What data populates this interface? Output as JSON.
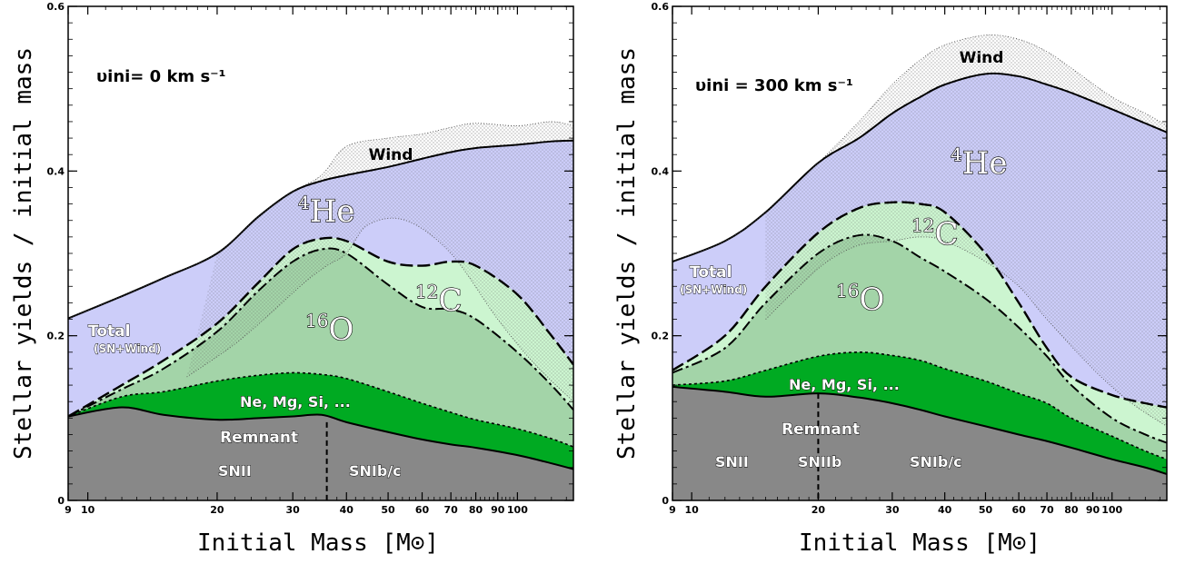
{
  "colors": {
    "remnant": "#888888",
    "nemgsi": "#00aa22",
    "oxygen": "#a3d4a8",
    "carbon": "#ccf5d0",
    "helium": "#cccdf9",
    "wind_stipple": "#666666",
    "line": "#000000"
  },
  "chart_data": [
    {
      "type": "area",
      "stacked": true,
      "xscale": "log",
      "xlim": [
        9,
        135
      ],
      "ylim": [
        0,
        0.6
      ],
      "xlabel": "Initial Mass [M⊙]",
      "ylabel": "Stellar yields / initial mass",
      "xtick_labels": [
        "9",
        "10",
        "20",
        "30",
        "40",
        "50",
        "60",
        "70",
        "80",
        "90",
        "100"
      ],
      "xticks": [
        9,
        10,
        20,
        30,
        40,
        50,
        60,
        70,
        80,
        90,
        100
      ],
      "yticks": [
        0,
        0.2,
        0.4,
        0.6
      ],
      "ytick_labels": [
        "0",
        "0.2",
        "0.4",
        "0.6"
      ],
      "annotation": "υini= 0 km s⁻¹",
      "boundaries": {
        "x": [
          9,
          12,
          15,
          20,
          25,
          30,
          35,
          40,
          50,
          60,
          70,
          80,
          100,
          120,
          135
        ],
        "remnant": [
          0.102,
          0.113,
          0.104,
          0.098,
          0.1,
          0.102,
          0.104,
          0.095,
          0.083,
          0.074,
          0.068,
          0.064,
          0.055,
          0.045,
          0.038
        ],
        "nemgsi": [
          0.102,
          0.126,
          0.132,
          0.145,
          0.152,
          0.155,
          0.153,
          0.148,
          0.132,
          0.118,
          0.107,
          0.098,
          0.087,
          0.075,
          0.065
        ],
        "oxygen": [
          0.102,
          0.135,
          0.16,
          0.205,
          0.255,
          0.29,
          0.305,
          0.3,
          0.262,
          0.235,
          0.232,
          0.22,
          0.18,
          0.14,
          0.11
        ],
        "carbon": [
          0.102,
          0.14,
          0.17,
          0.215,
          0.265,
          0.305,
          0.318,
          0.315,
          0.29,
          0.285,
          0.29,
          0.285,
          0.25,
          0.2,
          0.165
        ],
        "total": [
          0.221,
          0.248,
          0.27,
          0.3,
          0.345,
          0.375,
          0.388,
          0.395,
          0.405,
          0.415,
          0.423,
          0.428,
          0.432,
          0.436,
          0.437
        ],
        "wind_top": [
          0.221,
          0.248,
          0.27,
          0.3,
          0.345,
          0.375,
          0.395,
          0.43,
          0.44,
          0.445,
          0.453,
          0.458,
          0.455,
          0.46,
          0.455
        ]
      },
      "dotted": {
        "x": [
          17,
          22,
          27,
          32,
          36,
          40,
          45,
          55,
          70,
          90,
          110,
          135
        ],
        "y": [
          0.15,
          0.19,
          0.23,
          0.265,
          0.285,
          0.3,
          0.335,
          0.34,
          0.3,
          0.22,
          0.165,
          0.12
        ]
      },
      "split_mass": 36,
      "split_top": 0.095,
      "labels": {
        "wind": "Wind",
        "he4_sup": "4",
        "he4": "He",
        "c12_sup": "12",
        "c12": "C",
        "o16_sup": "16",
        "o16": "O",
        "total": "Total",
        "total_sub": "(SN+Wind)",
        "nemgsi": "Ne, Mg, Si, ...",
        "remnant": "Remnant",
        "snii": "SNII",
        "snibc": "SNIb/c"
      }
    },
    {
      "type": "area",
      "stacked": true,
      "xscale": "log",
      "xlim": [
        9,
        135
      ],
      "ylim": [
        0,
        0.6
      ],
      "xlabel": "Initial Mass [M⊙]",
      "ylabel": "Stellar yields / initial mass",
      "xtick_labels": [
        "9",
        "10",
        "20",
        "30",
        "40",
        "50",
        "60",
        "70",
        "80",
        "90",
        "100"
      ],
      "xticks": [
        9,
        10,
        20,
        30,
        40,
        50,
        60,
        70,
        80,
        90,
        100
      ],
      "yticks": [
        0,
        0.2,
        0.4,
        0.6
      ],
      "ytick_labels": [
        "0",
        "0.2",
        "0.4",
        "0.6"
      ],
      "annotation": "υini = 300 km s⁻¹",
      "boundaries": {
        "x": [
          9,
          12,
          15,
          20,
          25,
          30,
          35,
          40,
          50,
          60,
          70,
          80,
          100,
          120,
          135
        ],
        "remnant": [
          0.138,
          0.132,
          0.126,
          0.13,
          0.125,
          0.118,
          0.11,
          0.102,
          0.09,
          0.08,
          0.072,
          0.064,
          0.05,
          0.04,
          0.032
        ],
        "nemgsi": [
          0.14,
          0.145,
          0.158,
          0.175,
          0.18,
          0.176,
          0.17,
          0.16,
          0.145,
          0.13,
          0.118,
          0.1,
          0.078,
          0.06,
          0.05
        ],
        "oxygen": [
          0.155,
          0.185,
          0.24,
          0.3,
          0.322,
          0.315,
          0.295,
          0.278,
          0.245,
          0.21,
          0.175,
          0.14,
          0.1,
          0.08,
          0.07
        ],
        "carbon": [
          0.158,
          0.2,
          0.26,
          0.325,
          0.355,
          0.362,
          0.36,
          0.35,
          0.3,
          0.24,
          0.185,
          0.15,
          0.128,
          0.118,
          0.113
        ],
        "total": [
          0.29,
          0.315,
          0.35,
          0.41,
          0.44,
          0.47,
          0.49,
          0.505,
          0.518,
          0.515,
          0.505,
          0.495,
          0.475,
          0.458,
          0.447
        ],
        "wind_top": [
          0.29,
          0.315,
          0.35,
          0.41,
          0.46,
          0.505,
          0.535,
          0.553,
          0.565,
          0.56,
          0.545,
          0.525,
          0.49,
          0.47,
          0.455
        ]
      },
      "dotted": {
        "x": [
          15,
          18,
          21,
          25,
          30,
          35,
          40,
          50,
          60,
          70,
          90,
          110,
          135
        ],
        "y": [
          0.22,
          0.26,
          0.29,
          0.31,
          0.315,
          0.32,
          0.315,
          0.29,
          0.26,
          0.22,
          0.16,
          0.12,
          0.09
        ]
      },
      "split_mass": 20,
      "split_top": 0.13,
      "labels": {
        "wind": "Wind",
        "he4_sup": "4",
        "he4": "He",
        "c12_sup": "12",
        "c12": "C",
        "o16_sup": "16",
        "o16": "O",
        "total": "Total",
        "total_sub": "(SN+Wind)",
        "nemgsi": "Ne, Mg, Si, ...",
        "remnant": "Remnant",
        "snii": "SNII",
        "sniib": "SNIIb",
        "snibc": "SNIb/c"
      }
    }
  ]
}
